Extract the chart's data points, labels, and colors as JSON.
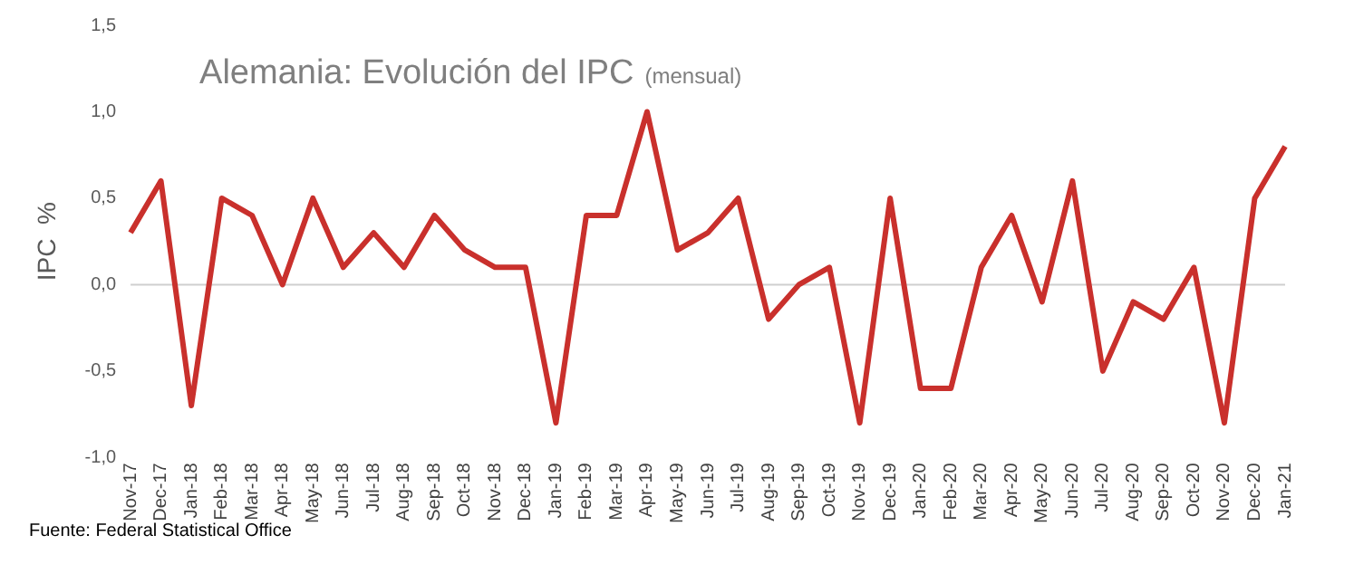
{
  "chart_data": {
    "type": "line",
    "title": "Alemania: Evolución del IPC",
    "subtitle": "(mensual)",
    "ylabel": "IPC  %",
    "annotations": [
      "Fuente: Federal Statistical Office"
    ],
    "categories": [
      "Nov-17",
      "Dec-17",
      "Jan-18",
      "Feb-18",
      "Mar-18",
      "Apr-18",
      "May-18",
      "Jun-18",
      "Jul-18",
      "Aug-18",
      "Sep-18",
      "Oct-18",
      "Nov-18",
      "Dec-18",
      "Jan-19",
      "Feb-19",
      "Mar-19",
      "Apr-19",
      "May-19",
      "Jun-19",
      "Jul-19",
      "Aug-19",
      "Sep-19",
      "Oct-19",
      "Nov-19",
      "Dec-19",
      "Jan-20",
      "Feb-20",
      "Mar-20",
      "Apr-20",
      "May-20",
      "Jun-20",
      "Jul-20",
      "Aug-20",
      "Sep-20",
      "Oct-20",
      "Nov-20",
      "Dec-20",
      "Jan-21"
    ],
    "series": [
      {
        "color": "#c9302c",
        "values": [
          0.3,
          0.6,
          -0.7,
          0.5,
          0.4,
          0.0,
          0.5,
          0.1,
          0.3,
          0.1,
          0.4,
          0.2,
          0.1,
          0.1,
          -0.8,
          0.4,
          0.4,
          1.0,
          0.2,
          0.3,
          0.5,
          -0.2,
          0.0,
          0.1,
          -0.8,
          0.5,
          -0.6,
          -0.6,
          0.1,
          0.4,
          -0.1,
          0.6,
          -0.5,
          -0.1,
          -0.2,
          0.1,
          -0.8,
          0.5,
          0.8
        ]
      }
    ],
    "ylim": [
      -1.0,
      1.5
    ],
    "yticks": [
      {
        "value": -1.0,
        "label": "-1,0"
      },
      {
        "value": -0.5,
        "label": "-0,5"
      },
      {
        "value": 0,
        "label": "0,0"
      },
      {
        "value": 0.5,
        "label": "0,5"
      },
      {
        "value": 1.0,
        "label": "1,0"
      },
      {
        "value": 1.5,
        "label": "1,5"
      }
    ],
    "ref_lines": [
      {
        "axis": "y",
        "value": 0,
        "color": "#cfcfcf"
      }
    ],
    "grid": false,
    "legend": false,
    "marker": "none",
    "line_style": "solid"
  }
}
